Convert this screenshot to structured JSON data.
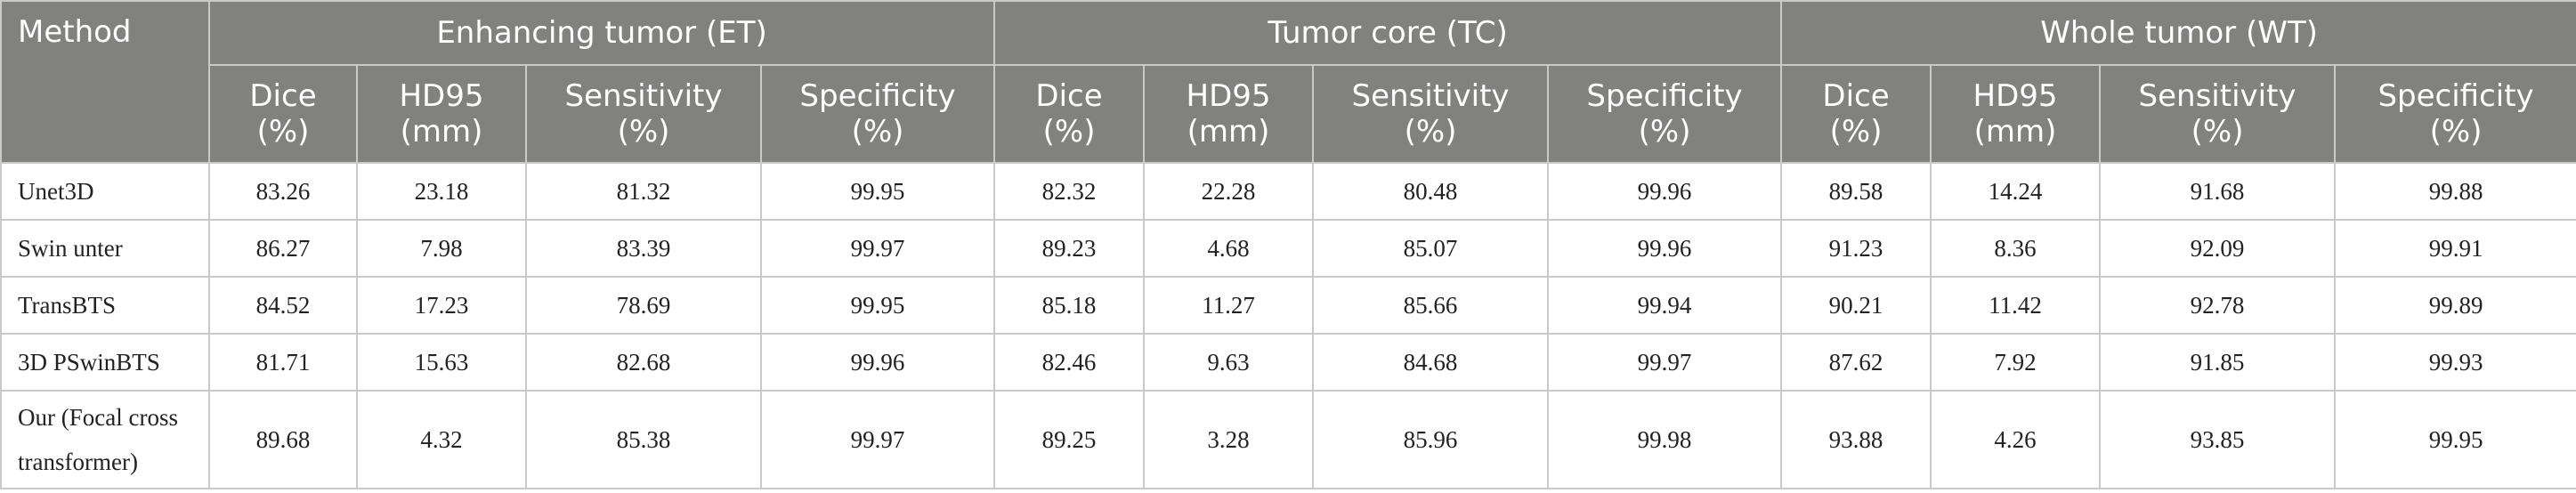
{
  "table": {
    "method_header": "Method",
    "groups": [
      {
        "label": "Enhancing tumor (ET)"
      },
      {
        "label": "Tumor core (TC)"
      },
      {
        "label": "Whole tumor (WT)"
      }
    ],
    "metrics": [
      {
        "l1": "Dice",
        "l2": "(%)"
      },
      {
        "l1": "HD95",
        "l2": "(mm)"
      },
      {
        "l1": "Sensitivity",
        "l2": "(%)"
      },
      {
        "l1": "Specificity",
        "l2": "(%)"
      }
    ],
    "rows": [
      {
        "method": "Unet3D",
        "values": [
          "83.26",
          "23.18",
          "81.32",
          "99.95",
          "82.32",
          "22.28",
          "80.48",
          "99.96",
          "89.58",
          "14.24",
          "91.68",
          "99.88"
        ]
      },
      {
        "method": "Swin unter",
        "values": [
          "86.27",
          "7.98",
          "83.39",
          "99.97",
          "89.23",
          "4.68",
          "85.07",
          "99.96",
          "91.23",
          "8.36",
          "92.09",
          "99.91"
        ]
      },
      {
        "method": "TransBTS",
        "values": [
          "84.52",
          "17.23",
          "78.69",
          "99.95",
          "85.18",
          "11.27",
          "85.66",
          "99.94",
          "90.21",
          "11.42",
          "92.78",
          "99.89"
        ]
      },
      {
        "method": "3D PSwinBTS",
        "values": [
          "81.71",
          "15.63",
          "82.68",
          "99.96",
          "82.46",
          "9.63",
          "84.68",
          "99.97",
          "87.62",
          "7.92",
          "91.85",
          "99.93"
        ]
      },
      {
        "method": "Our (Focal cross transformer)",
        "values": [
          "89.68",
          "4.32",
          "85.38",
          "99.97",
          "89.25",
          "3.28",
          "85.96",
          "99.98",
          "93.88",
          "4.26",
          "93.85",
          "99.95"
        ]
      }
    ]
  }
}
